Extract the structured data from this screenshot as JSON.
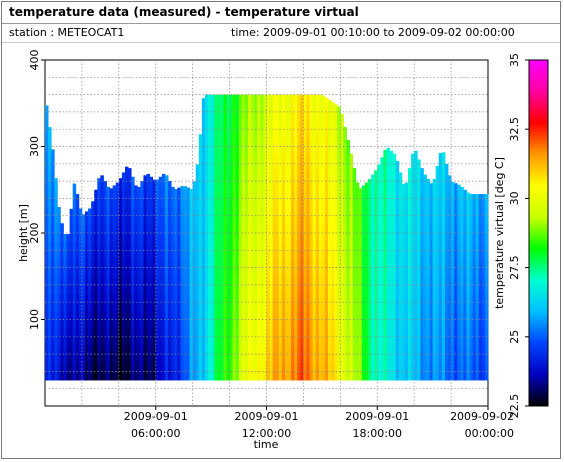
{
  "header": {
    "title": "temperature data (measured) - temperature virtual",
    "station": "station : METEOCAT1",
    "time_range": "time: 2009-09-01 00:10:00 to 2009-09-02 00:00:00"
  },
  "chart_data": {
    "type": "heatmap",
    "xlabel": "time",
    "ylabel": "height [m]",
    "colorbar_label": "temperature virtual [deg C]",
    "ylim": [
      0,
      400
    ],
    "ytick_values": [
      100,
      200,
      300,
      400
    ],
    "ytick_labels": [
      "100",
      "200",
      "300",
      "400"
    ],
    "xlim_hours": [
      0,
      24
    ],
    "xticks": [
      {
        "hour": 6,
        "line1": "2009-09-01",
        "line2": "06:00:00"
      },
      {
        "hour": 12,
        "line1": "2009-09-01",
        "line2": "12:00:00"
      },
      {
        "hour": 18,
        "line1": "2009-09-01",
        "line2": "18:00:00"
      },
      {
        "hour": 24,
        "line1": "2009-09-02",
        "line2": "00:00:00"
      }
    ],
    "clim": [
      22.5,
      35
    ],
    "colorbar_ticks": [
      "22.5",
      "25",
      "27.5",
      "30",
      "32.5",
      "35"
    ],
    "colorbar_tick_values": [
      22.5,
      25,
      27.5,
      30,
      32.5,
      35
    ],
    "colormap": [
      "#000000",
      "#0000c0",
      "#0044ff",
      "#00bfff",
      "#00ffd0",
      "#00ff00",
      "#c8ff00",
      "#ffff00",
      "#ff9900",
      "#ff0000",
      "#ff00a0",
      "#ff00ff"
    ],
    "grid": true,
    "height_min": 30,
    "time_step_minutes": 10,
    "series": [
      {
        "name": "max_height",
        "hours": [
          0,
          0.4,
          0.8,
          1.2,
          1.6,
          2,
          2.5,
          3,
          3.5,
          4,
          4.5,
          5,
          5.5,
          6,
          6.5,
          7,
          7.5,
          8,
          8.3,
          8.6,
          9,
          10,
          11,
          12,
          13,
          14,
          15,
          16,
          16.5,
          17,
          17.5,
          18,
          18.5,
          19,
          19.5,
          20,
          20.5,
          21,
          21.5,
          22,
          22.5,
          23,
          23.5,
          24
        ],
        "heights": [
          360,
          300,
          220,
          190,
          260,
          220,
          230,
          270,
          250,
          260,
          280,
          250,
          270,
          260,
          270,
          250,
          255,
          250,
          285,
          360,
          360,
          360,
          360,
          360,
          360,
          360,
          360,
          345,
          300,
          250,
          260,
          275,
          300,
          290,
          250,
          300,
          270,
          255,
          300,
          260,
          255,
          245,
          245,
          245
        ]
      },
      {
        "name": "temperature_profile_hours",
        "values": [
          0,
          2,
          4,
          6,
          8,
          9,
          10,
          11,
          12,
          13,
          14,
          15,
          16,
          17,
          18,
          20,
          22,
          24
        ]
      },
      {
        "name": "temperature_bottom",
        "values": [
          24.2,
          23.2,
          22.8,
          23.3,
          25.3,
          27.0,
          28.7,
          30.0,
          30.9,
          31.6,
          32.0,
          31.4,
          30.3,
          28.8,
          27.0,
          25.8,
          25.1,
          24.8
        ]
      },
      {
        "name": "temperature_top",
        "values": [
          25.7,
          24.9,
          24.6,
          24.8,
          25.8,
          26.9,
          28.0,
          28.9,
          29.6,
          30.2,
          30.6,
          30.2,
          29.4,
          28.3,
          27.2,
          26.4,
          26.0,
          25.8
        ]
      }
    ]
  }
}
